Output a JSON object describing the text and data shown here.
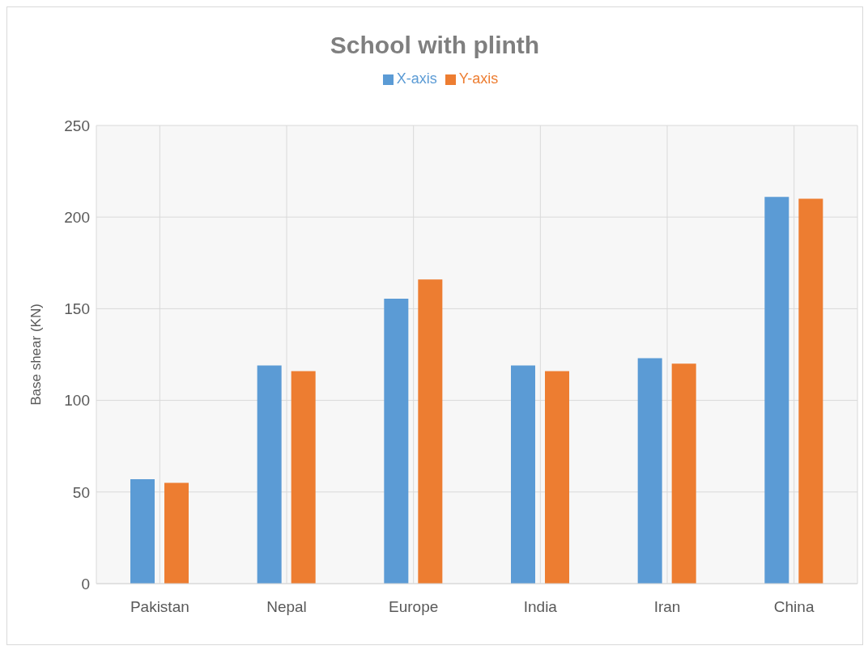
{
  "chart_data": {
    "type": "bar",
    "title": "School with plinth",
    "ylabel": "Base shear (KN)",
    "categories": [
      "Pakistan",
      "Nepal",
      "Europe",
      "India",
      "Iran",
      "China"
    ],
    "series": [
      {
        "name": "X-axis",
        "color": "#5b9bd5",
        "values": [
          57,
          119,
          155.5,
          119,
          123,
          211
        ]
      },
      {
        "name": "Y-axis",
        "color": "#ed7d31",
        "values": [
          55,
          116,
          166,
          116,
          120,
          210
        ]
      }
    ],
    "ylim": [
      0,
      250
    ],
    "yticks": [
      0,
      50,
      100,
      150,
      200,
      250
    ],
    "grid": true,
    "legend": "top"
  }
}
